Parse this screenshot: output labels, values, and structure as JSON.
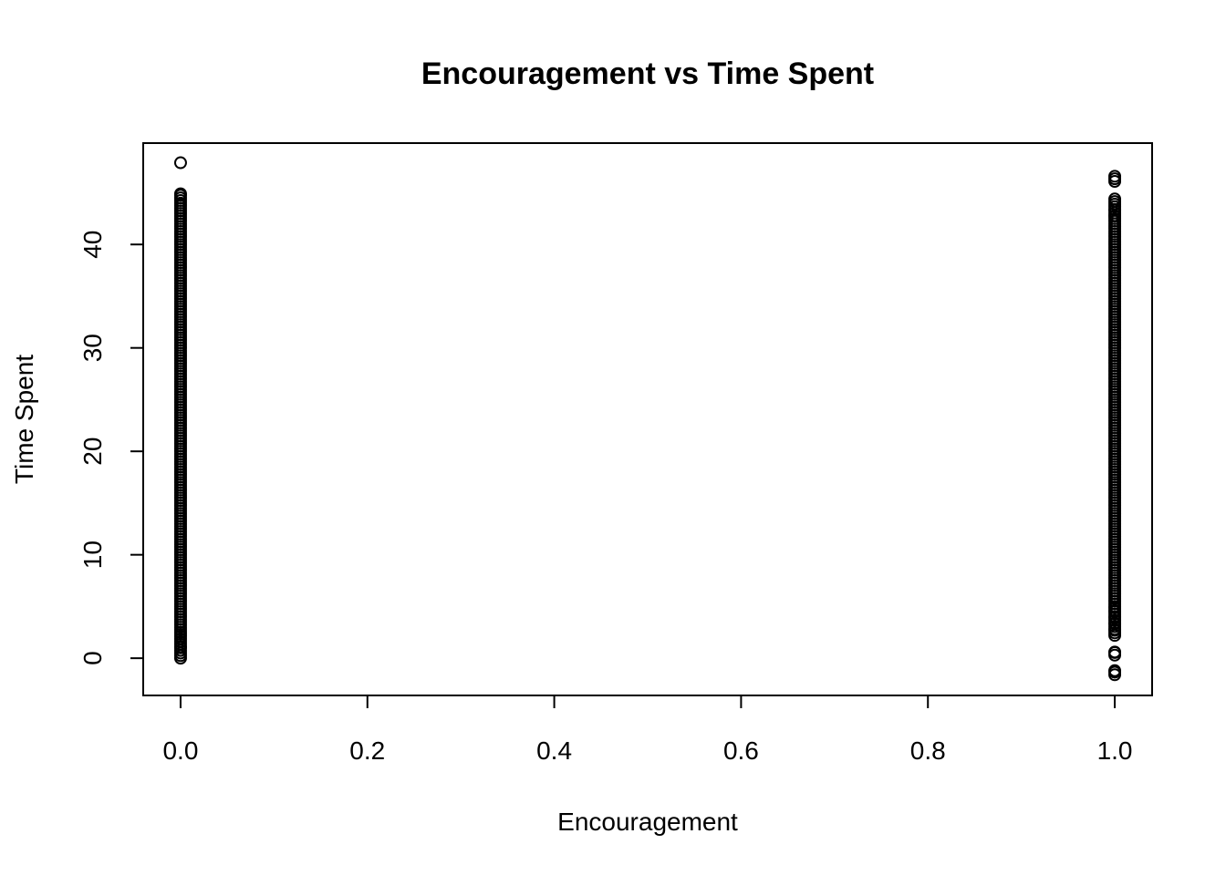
{
  "chart_data": {
    "type": "scatter",
    "title": "Encouragement vs Time Spent",
    "xlabel": "Encouragement",
    "ylabel": "Time Spent",
    "xlim": [
      -0.04,
      1.04
    ],
    "ylim": [
      -3.6,
      49.8
    ],
    "grid": false,
    "xticks": [
      0.0,
      0.2,
      0.4,
      0.6,
      0.8,
      1.0
    ],
    "xtick_labels": [
      "0.0",
      "0.2",
      "0.4",
      "0.6",
      "0.8",
      "1.0"
    ],
    "yticks": [
      0,
      10,
      20,
      30,
      40
    ],
    "ytick_labels": [
      "0",
      "10",
      "20",
      "30",
      "40"
    ],
    "series": [
      {
        "x": 0,
        "y": [
          0,
          1.0,
          1.1,
          2.3,
          2.5,
          3.0,
          4.0,
          5.0,
          6.0,
          7.0,
          8.0,
          9.0,
          10.0,
          11.0,
          12.0,
          13.0,
          14.0,
          15.0,
          16.0,
          17.0,
          18.0,
          19.0,
          20.0,
          21.0,
          22.0,
          23.0,
          24.0,
          25.0,
          26.0,
          27.0,
          28.0,
          29.0,
          30.0,
          31.0,
          32.0,
          33.0,
          34.0,
          35.0,
          36.0,
          37.0,
          38.0,
          39.0,
          40.0,
          41.0,
          42.0,
          42.5,
          43.0,
          43.5,
          44.0,
          44.9,
          47.9
        ]
      },
      {
        "x": 1,
        "y": [
          -1.6,
          -1.2,
          0.3,
          0.6,
          2.2,
          2.8,
          3.4,
          4.0,
          4.6,
          5.0,
          6.0,
          7.0,
          8.0,
          9.0,
          10.0,
          11.0,
          12.0,
          13.0,
          14.0,
          15.0,
          16.0,
          17.0,
          18.0,
          19.0,
          20.0,
          21.0,
          22.0,
          23.0,
          24.0,
          25.0,
          26.0,
          27.0,
          28.0,
          29.0,
          30.0,
          31.0,
          32.0,
          33.0,
          34.0,
          35.0,
          36.0,
          37.0,
          38.0,
          39.0,
          40.0,
          41.0,
          42.0,
          42.8,
          43.4,
          43.9,
          44.4,
          46.1,
          46.6
        ]
      }
    ]
  }
}
